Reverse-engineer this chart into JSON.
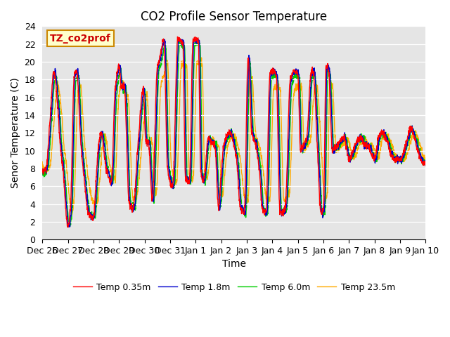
{
  "title": "CO2 Profile Sensor Temperature",
  "xlabel": "Time",
  "ylabel": "Senor Temperature (C)",
  "annotation": "TZ_co2prof",
  "ylim": [
    0,
    24
  ],
  "yticks": [
    0,
    2,
    4,
    6,
    8,
    10,
    12,
    14,
    16,
    18,
    20,
    22,
    24
  ],
  "series_colors": [
    "#ff0000",
    "#0000cc",
    "#00cc00",
    "#ffaa00"
  ],
  "series_labels": [
    "Temp 0.35m",
    "Temp 1.8m",
    "Temp 6.0m",
    "Temp 23.5m"
  ],
  "xtick_labels": [
    "Dec 26",
    "Dec 27",
    "Dec 28",
    "Dec 29",
    "Dec 30",
    "Dec 31",
    "Jan 1",
    "Jan 2",
    "Jan 3",
    "Jan 4",
    "Jan 5",
    "Jan 6",
    "Jan 7",
    "Jan 8",
    "Jan 9",
    "Jan 10"
  ],
  "xtick_days": [
    0,
    1,
    2,
    3,
    4,
    5,
    6,
    7,
    8,
    9,
    10,
    11,
    12,
    13,
    14,
    15
  ],
  "background_color": "#e5e5e5",
  "line_width": 1.0,
  "title_fontsize": 12,
  "label_fontsize": 10,
  "tick_fontsize": 9,
  "legend_fontsize": 9,
  "red_keypoints_t": [
    0.0,
    0.15,
    0.3,
    0.45,
    0.6,
    0.7,
    0.8,
    1.0,
    1.1,
    1.25,
    1.35,
    1.5,
    1.65,
    1.8,
    2.0,
    2.1,
    2.2,
    2.3,
    2.5,
    2.7,
    2.85,
    3.0,
    3.1,
    3.2,
    3.4,
    3.55,
    3.75,
    3.95,
    4.05,
    4.15,
    4.3,
    4.5,
    4.6,
    4.75,
    4.9,
    5.1,
    5.3,
    5.5,
    5.6,
    5.75,
    5.9,
    6.1,
    6.2,
    6.3,
    6.5,
    6.6,
    6.75,
    6.9,
    7.0,
    7.1,
    7.2,
    7.35,
    7.5,
    7.6,
    7.75,
    7.9,
    8.05,
    8.2,
    8.35,
    8.5,
    8.6,
    8.75,
    8.9,
    9.0,
    9.15,
    9.3,
    9.5,
    9.7,
    9.85,
    10.0,
    10.1,
    10.2,
    10.35,
    10.5,
    10.6,
    10.75,
    10.9,
    11.0,
    11.1,
    11.2,
    11.35,
    11.5,
    11.65,
    11.8,
    12.0,
    12.1,
    12.3,
    12.5,
    12.6,
    12.75,
    12.9,
    13.0,
    13.15,
    13.3,
    13.5,
    13.65,
    13.8,
    14.0,
    14.1,
    14.25,
    14.4,
    14.6,
    14.8,
    15.0
  ],
  "red_keypoints_v": [
    7.5,
    8.0,
    13.5,
    19.0,
    15.0,
    10.5,
    8.0,
    1.5,
    3.5,
    18.5,
    19.0,
    11.0,
    6.5,
    3.0,
    2.5,
    6.5,
    10.5,
    12.0,
    8.0,
    6.5,
    17.0,
    19.5,
    17.0,
    17.5,
    4.0,
    3.5,
    11.0,
    17.0,
    11.0,
    11.0,
    4.5,
    19.5,
    20.5,
    22.5,
    8.0,
    6.0,
    22.5,
    22.0,
    7.0,
    6.5,
    22.5,
    22.5,
    7.5,
    6.5,
    11.5,
    11.0,
    10.5,
    3.5,
    7.5,
    10.5,
    11.5,
    12.0,
    10.5,
    9.0,
    3.5,
    3.0,
    20.5,
    12.0,
    10.5,
    7.5,
    3.5,
    3.0,
    18.5,
    19.0,
    18.5,
    3.0,
    3.5,
    18.0,
    19.0,
    18.5,
    10.0,
    10.5,
    11.5,
    18.5,
    19.0,
    11.0,
    3.0,
    3.5,
    19.5,
    19.0,
    10.0,
    10.5,
    11.0,
    11.5,
    9.0,
    9.5,
    11.0,
    11.5,
    10.5,
    10.5,
    9.5,
    9.0,
    11.5,
    12.0,
    11.0,
    9.5,
    9.0,
    9.0,
    9.5,
    11.0,
    12.5,
    11.0,
    9.0,
    8.5
  ]
}
